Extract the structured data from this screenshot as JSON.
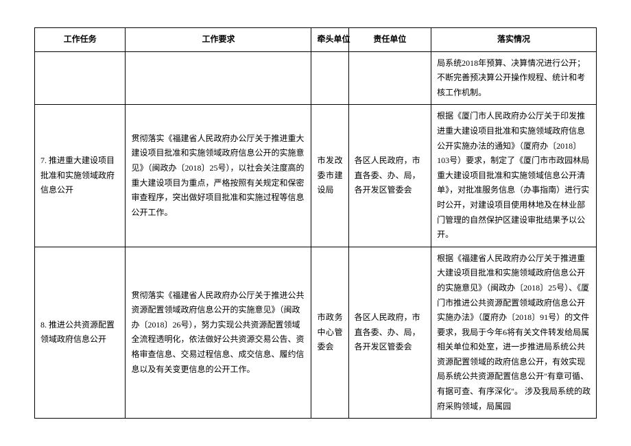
{
  "table": {
    "headers": {
      "task": "工作任务",
      "requirement": "工作要求",
      "lead": "牵头单位",
      "responsible": "责任单位",
      "implementation": "落实情况"
    },
    "rows": [
      {
        "task": "",
        "requirement": "",
        "lead": "",
        "responsible": "",
        "implementation": "局系统2018年预算、决算情况进行公开；不断完善预决算公开操作规程、统计和考核工作机制。"
      },
      {
        "task": "7. 推进重大建设项目批准和实施领域政府信息公开",
        "requirement": "贯彻落实《福建省人民政府办公厅关于推进重大建设项目批准和实施领域政府信息公开的实施意见》（闽政办〔2018〕25号），以社会关注度高的重大建设项目为重点，严格按照有关规定和保密审查程序，突出做好项目批准和实施过程等信息公开工作。",
        "lead": "市发改委市建设局",
        "responsible": "各区人民政府，市直各委、办、局，各开发区管委会",
        "implementation": "根据《厦门市人民政府办公厅关于印发推进重大建设项目批准和实施领域政府信息公开实施办法的通知》（厦府办〔2018〕103号）要求，制定了《厦门市市政园林局重大建设项目批准和实施领域信息公开清单》，对批准服务信息（办事指南）进行实时公开，对建设项目使用林地及在林业部门管理的自然保护区建设审批结果予以公开。"
      },
      {
        "task": "8. 推进公共资源配置领域政府信息公开",
        "requirement": "贯彻落实《福建省人民政府办公厅关于推进公共资源配置领域政府信息公开的实施意见》（闽政办〔2018〕26号），努力实现公共资源配置领域全流程透明化，依法做好公共资源交易公告、资格审查信息、交易过程信息、成交信息、履约信息以及有关变更信息的公开工作。",
        "lead": "市政务中心管委会",
        "responsible": "各区人民政府，市直各委、办、局，各开发区管委会",
        "implementation": "根据《福建省人民政府办公厅关于推进重大建设项目批准和实施领域政府信息公开的实施意见》（闽政办〔2018〕25号）、《厦门市推进公共资源配置领域政府信息公开实施办法》（厦府办〔2018〕91号）的文件要求，我局于今年6将有关文件转发给局属相关单位和处室，进一步推进局系统公共资源配置领域的政府信息公开，有效实现局系统公共资源配置信息公开\"有章可循、有据可查、有序深化\"。\n涉及我局系统的政府采购领域，局属园"
      }
    ]
  }
}
